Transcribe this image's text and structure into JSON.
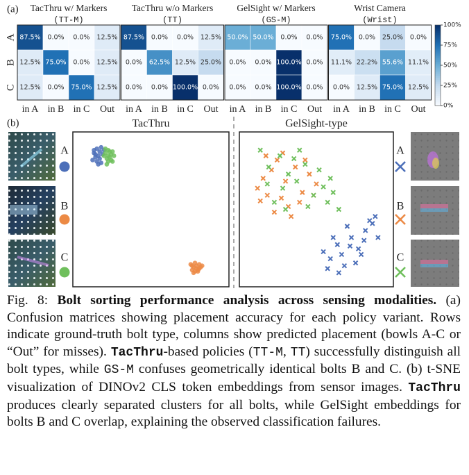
{
  "panel_a_label": "(a)",
  "panel_b_label": "(b)",
  "chart_data": [
    {
      "type": "heatmap",
      "title": "TacThru w/ Markers",
      "subtitle": "(TT-M)",
      "rows": [
        "A",
        "B",
        "C"
      ],
      "columns": [
        "in A",
        "in B",
        "in C",
        "Out"
      ],
      "values": [
        [
          87.5,
          0,
          0,
          12.5
        ],
        [
          12.5,
          75,
          0,
          12.5
        ],
        [
          12.5,
          0,
          75,
          12.5
        ]
      ],
      "value_labels": [
        [
          "87.5%",
          "0.0%",
          "0.0%",
          "12.5%"
        ],
        [
          "12.5%",
          "75.0%",
          "0.0%",
          "12.5%"
        ],
        [
          "12.5%",
          "0.0%",
          "75.0%",
          "12.5%"
        ]
      ]
    },
    {
      "type": "heatmap",
      "title": "TacThru w/o Markers",
      "subtitle": "(TT)",
      "columns": [
        "in A",
        "in B",
        "in C",
        "Out"
      ],
      "values": [
        [
          87.5,
          0,
          0,
          12.5
        ],
        [
          0,
          62.5,
          12.5,
          25
        ],
        [
          0,
          0,
          100,
          0
        ]
      ],
      "value_labels": [
        [
          "87.5%",
          "0.0%",
          "0.0%",
          "12.5%"
        ],
        [
          "0.0%",
          "62.5%",
          "12.5%",
          "25.0%"
        ],
        [
          "0.0%",
          "0.0%",
          "100.0%",
          "0.0%"
        ]
      ]
    },
    {
      "type": "heatmap",
      "title": "GelSight w/ Markers",
      "subtitle": "(GS-M)",
      "columns": [
        "in A",
        "in B",
        "in C",
        "Out"
      ],
      "values": [
        [
          50,
          50,
          0,
          0
        ],
        [
          0,
          0,
          100,
          0
        ],
        [
          0,
          0,
          100,
          0
        ]
      ],
      "value_labels": [
        [
          "50.0%",
          "50.0%",
          "0.0%",
          "0.0%"
        ],
        [
          "0.0%",
          "0.0%",
          "100.0%",
          "0.0%"
        ],
        [
          "0.0%",
          "0.0%",
          "100.0%",
          "0.0%"
        ]
      ]
    },
    {
      "type": "heatmap",
      "title": "Wrist Camera",
      "subtitle": "(Wrist)",
      "columns": [
        "in A",
        "in B",
        "in C",
        "Out"
      ],
      "values": [
        [
          75,
          0,
          25,
          0
        ],
        [
          11.1,
          22.2,
          55.6,
          11.1
        ],
        [
          0,
          12.5,
          75,
          12.5
        ]
      ],
      "value_labels": [
        [
          "75.0%",
          "0.0%",
          "25.0%",
          "0.0%"
        ],
        [
          "11.1%",
          "22.2%",
          "55.6%",
          "11.1%"
        ],
        [
          "0.0%",
          "12.5%",
          "75.0%",
          "12.5%"
        ]
      ]
    },
    {
      "type": "colorbar",
      "colormap": "Blues",
      "ylim": [
        0,
        100
      ],
      "yticks": [
        {
          "value": 0,
          "label": "0%"
        },
        {
          "value": 25,
          "label": "25%"
        },
        {
          "value": 50,
          "label": "50%"
        },
        {
          "value": 75,
          "label": "75%"
        },
        {
          "value": 100,
          "label": "100%"
        }
      ]
    },
    {
      "type": "scatter",
      "title": "TacThru",
      "marker": "circle",
      "xlim": [
        0,
        100
      ],
      "ylim": [
        0,
        100
      ],
      "series": [
        {
          "name": "A",
          "color": "#4c6fb9",
          "x": [
            10,
            12,
            14,
            11,
            13,
            15,
            9,
            12,
            16,
            14,
            10,
            13,
            17,
            11,
            15
          ],
          "y": [
            90,
            93,
            91,
            87,
            88,
            94,
            85,
            84,
            89,
            86,
            92,
            82,
            92,
            89,
            83
          ]
        },
        {
          "name": "B",
          "color": "#ec8a45",
          "x": [
            78,
            80,
            82,
            84,
            79,
            81,
            83,
            85,
            80,
            82,
            84,
            79,
            81,
            83,
            86
          ],
          "y": [
            11,
            9,
            10,
            8,
            7,
            12,
            6,
            9,
            5,
            8,
            11,
            10,
            6,
            7,
            10
          ]
        },
        {
          "name": "C",
          "color": "#6fbf5c",
          "x": [
            18,
            20,
            22,
            19,
            21,
            23,
            17,
            20,
            22,
            24,
            19,
            21,
            18,
            23,
            20
          ],
          "y": [
            90,
            92,
            89,
            86,
            87,
            91,
            88,
            84,
            85,
            88,
            82,
            91,
            93,
            84,
            88
          ]
        }
      ]
    },
    {
      "type": "scatter",
      "title": "GelSight-type",
      "marker": "x",
      "xlim": [
        0,
        100
      ],
      "ylim": [
        0,
        100
      ],
      "series": [
        {
          "name": "A",
          "color": "#4c6fb9",
          "x": [
            55,
            60,
            65,
            70,
            75,
            80,
            85,
            90,
            58,
            62,
            68,
            72,
            78,
            84,
            88,
            92,
            66,
            74,
            82,
            94
          ],
          "y": [
            20,
            15,
            25,
            10,
            30,
            22,
            35,
            40,
            8,
            30,
            18,
            38,
            12,
            28,
            42,
            45,
            5,
            24,
            18,
            30
          ]
        },
        {
          "name": "B",
          "color": "#ec8a45",
          "x": [
            12,
            18,
            22,
            8,
            15,
            28,
            35,
            25,
            30,
            40,
            20,
            14,
            45,
            38,
            50,
            26,
            10,
            32,
            42,
            48
          ],
          "y": [
            72,
            78,
            85,
            65,
            60,
            70,
            80,
            58,
            52,
            62,
            48,
            88,
            75,
            55,
            68,
            90,
            56,
            45,
            85,
            60
          ]
        },
        {
          "name": "C",
          "color": "#6fbf5c",
          "x": [
            10,
            16,
            24,
            30,
            36,
            42,
            48,
            55,
            20,
            28,
            34,
            60,
            15,
            44,
            52,
            62,
            38,
            26,
            58,
            66
          ],
          "y": [
            92,
            80,
            88,
            75,
            70,
            82,
            60,
            66,
            55,
            50,
            86,
            72,
            68,
            52,
            78,
            62,
            92,
            65,
            55,
            50
          ]
        }
      ]
    }
  ],
  "caption": {
    "parts": [
      "Fig. 8: ",
      "Bolt sorting performance analysis across sensing modalities.",
      " (a) Confusion matrices showing placement accuracy for each policy variant. Rows indicate ground-truth bolt type, columns show predicted placement (bowls A-C or “Out” for misses). ",
      "TacThru",
      "-based policies (",
      "TT-M",
      ", ",
      "TT",
      ") successfully distinguish all bolt types, while ",
      "GS-M",
      " confuses geometrically identical bolts B and C. (b) t-SNE visualization of DINOv2 CLS token embeddings from sensor images. ",
      "TacThru",
      " produces clearly separated clusters for all bolts, while GelSight embeddings for bolts B and C overlap, explaining the observed classification failures."
    ]
  }
}
